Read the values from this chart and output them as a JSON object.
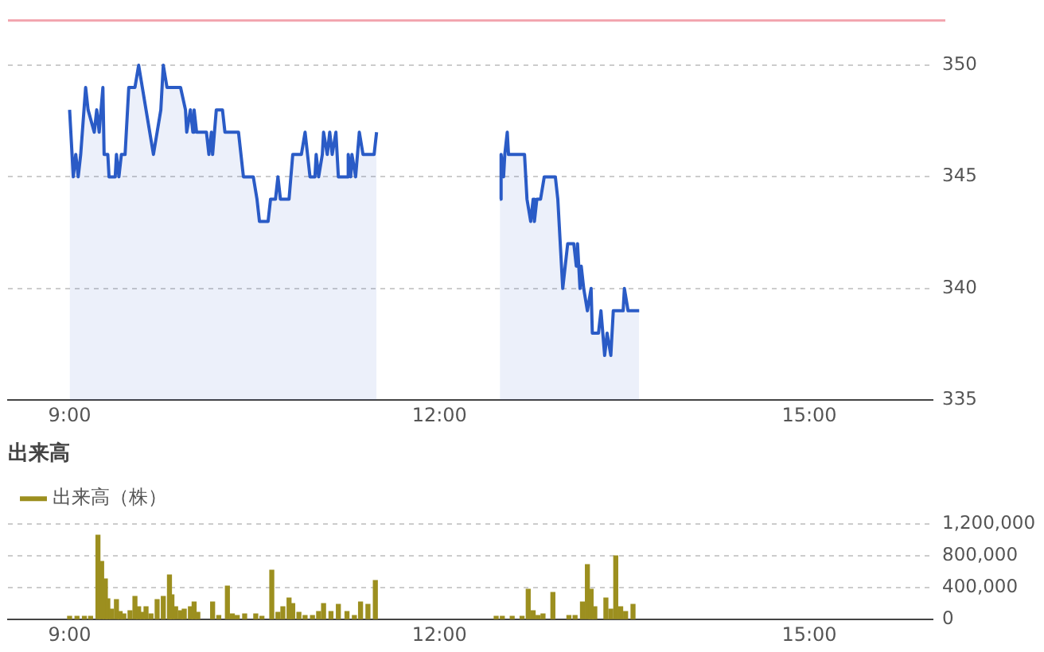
{
  "chart_data": [
    {
      "type": "area",
      "x": [
        9.0,
        9.03,
        9.05,
        9.07,
        9.09,
        9.13,
        9.15,
        9.2,
        9.22,
        9.24,
        9.27,
        9.28,
        9.31,
        9.32,
        9.37,
        9.38,
        9.4,
        9.42,
        9.45,
        9.48,
        9.53,
        9.56,
        9.59,
        9.62,
        9.68,
        9.71,
        9.74,
        9.76,
        9.79,
        9.9,
        9.94,
        9.95,
        9.98,
        10.0,
        10.01,
        10.03,
        10.11,
        10.13,
        10.15,
        10.16,
        10.19,
        10.24,
        10.26,
        10.37,
        10.41,
        10.49,
        10.52,
        10.54,
        10.61,
        10.63,
        10.67,
        10.69,
        10.71,
        10.78,
        10.81,
        10.88,
        10.91,
        10.95,
        10.99,
        11.0,
        11.02,
        11.05,
        11.06,
        11.09,
        11.11,
        11.13,
        11.16,
        11.18,
        11.25,
        11.26,
        11.28,
        11.29,
        11.32,
        11.35,
        11.38,
        11.47,
        11.49,
        12.0,
        12.49,
        12.5,
        12.52,
        12.53,
        12.55,
        12.56,
        12.59,
        12.69,
        12.71,
        12.74,
        12.76,
        12.77,
        12.79,
        12.82,
        12.85,
        12.94,
        12.96,
        13.0,
        13.04,
        13.09,
        13.11,
        13.12,
        13.14,
        13.15,
        13.17,
        13.2,
        13.23,
        13.24,
        13.29,
        13.31,
        13.34,
        13.36,
        13.39,
        13.41,
        13.49,
        13.5,
        13.53,
        13.62
      ],
      "series": [
        {
          "color": "#2a5bc6",
          "values": [
            348,
            345,
            346,
            345,
            346,
            349,
            348,
            347,
            348,
            347,
            349,
            346,
            346,
            345,
            345,
            346,
            345,
            346,
            346,
            349,
            349,
            350,
            349,
            348,
            346,
            347,
            348,
            350,
            349,
            349,
            348,
            347,
            348,
            347,
            348,
            347,
            347,
            346,
            347,
            346,
            348,
            348,
            347,
            347,
            345,
            345,
            344,
            343,
            343,
            344,
            344,
            345,
            344,
            344,
            346,
            346,
            347,
            345,
            345,
            346,
            345,
            346,
            347,
            346,
            347,
            346,
            347,
            345,
            345,
            346,
            345,
            346,
            345,
            347,
            346,
            346,
            347,
            null,
            344,
            346,
            345,
            346,
            347,
            346,
            346,
            346,
            344,
            343,
            344,
            343,
            344,
            344,
            345,
            345,
            344,
            340,
            342,
            342,
            341,
            342,
            340,
            341,
            340,
            339,
            340,
            338,
            338,
            339,
            337,
            338,
            337,
            339,
            339,
            340,
            339,
            339
          ]
        }
      ],
      "xlim": [
        8.5,
        16
      ],
      "xticks": [
        {
          "value": 9,
          "label": "9:00"
        },
        {
          "value": 12,
          "label": "12:00"
        },
        {
          "value": 15,
          "label": "15:00"
        }
      ],
      "ylim": [
        335,
        352
      ],
      "yticks": [
        335,
        340,
        345,
        350
      ],
      "grid": "y",
      "legend": false,
      "ref_lines": [
        {
          "axis": "y",
          "value": 352,
          "color": "#f2a3ad"
        }
      ]
    },
    {
      "type": "bar",
      "title": "出来高",
      "legend": "top left",
      "x": [
        9.0,
        9.06,
        9.12,
        9.17,
        9.23,
        9.26,
        9.29,
        9.31,
        9.34,
        9.38,
        9.41,
        9.44,
        9.49,
        9.53,
        9.56,
        9.59,
        9.62,
        9.66,
        9.71,
        9.76,
        9.81,
        9.83,
        9.86,
        9.9,
        9.93,
        9.98,
        10.01,
        10.04,
        10.16,
        10.21,
        10.28,
        10.32,
        10.36,
        10.42,
        10.51,
        10.56,
        10.64,
        10.69,
        10.73,
        10.78,
        10.81,
        10.86,
        10.91,
        10.97,
        11.02,
        11.06,
        11.12,
        11.18,
        11.25,
        11.31,
        11.36,
        11.42,
        11.48,
        12.46,
        12.51,
        12.59,
        12.67,
        12.72,
        12.76,
        12.8,
        12.84,
        12.92,
        13.05,
        13.1,
        13.16,
        13.2,
        13.23,
        13.26,
        13.35,
        13.39,
        13.43,
        13.47,
        13.51,
        13.57
      ],
      "series": [
        {
          "name": "出来高（株）",
          "color": "#9c8f1f",
          "values": [
            40000,
            40000,
            40000,
            40000,
            1060000,
            730000,
            510000,
            260000,
            130000,
            250000,
            100000,
            70000,
            110000,
            290000,
            160000,
            90000,
            160000,
            70000,
            250000,
            290000,
            560000,
            310000,
            160000,
            110000,
            130000,
            160000,
            220000,
            90000,
            220000,
            50000,
            420000,
            70000,
            50000,
            70000,
            70000,
            40000,
            620000,
            90000,
            160000,
            270000,
            200000,
            90000,
            50000,
            50000,
            100000,
            200000,
            100000,
            190000,
            100000,
            50000,
            220000,
            190000,
            490000,
            40000,
            40000,
            40000,
            40000,
            380000,
            110000,
            50000,
            70000,
            340000,
            50000,
            50000,
            220000,
            690000,
            380000,
            160000,
            270000,
            130000,
            800000,
            160000,
            100000,
            190000
          ]
        }
      ],
      "xlim": [
        8.5,
        16
      ],
      "xticks": [
        {
          "value": 9,
          "label": "9:00"
        },
        {
          "value": 12,
          "label": "12:00"
        },
        {
          "value": 15,
          "label": "15:00"
        }
      ],
      "ylim": [
        0,
        1200000
      ],
      "yticks": [
        {
          "value": 0,
          "label": "0"
        },
        {
          "value": 400000,
          "label": "400,000"
        },
        {
          "value": 800000,
          "label": "800,000"
        },
        {
          "value": 1200000,
          "label": "1,200,000"
        }
      ],
      "grid": "y"
    }
  ]
}
